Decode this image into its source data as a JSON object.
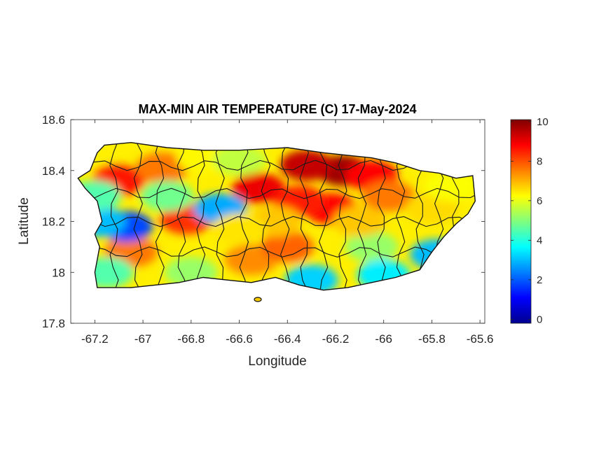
{
  "chart_data": {
    "type": "heatmap",
    "title": "MAX-MIN AIR TEMPERATURE (C) 17-May-2024",
    "xlabel": "Longitude",
    "ylabel": "Latitude",
    "xlim": [
      -67.3,
      -65.58
    ],
    "ylim": [
      17.8,
      18.6
    ],
    "x_ticks": [
      -67.2,
      -67,
      -66.8,
      -66.6,
      -66.4,
      -66.2,
      -66,
      -65.8,
      -65.6
    ],
    "x_tick_labels": [
      "-67.2",
      "-67",
      "-66.8",
      "-66.6",
      "-66.4",
      "-66.2",
      "-66",
      "-65.8",
      "-65.6"
    ],
    "y_ticks": [
      17.8,
      18,
      18.2,
      18.4,
      18.6
    ],
    "y_tick_labels": [
      "17.8",
      "18",
      "18.2",
      "18.4",
      "18.6"
    ],
    "colorbar": {
      "colormap": "jet",
      "clim": [
        -0.2,
        10.1
      ],
      "ticks": [
        0,
        2,
        4,
        6,
        8,
        10
      ],
      "tick_labels": [
        "0",
        "2",
        "4",
        "6",
        "8",
        "10"
      ]
    },
    "island_outline": [
      [
        -67.27,
        18.37
      ],
      [
        -67.22,
        18.4
      ],
      [
        -67.19,
        18.47
      ],
      [
        -67.16,
        18.5
      ],
      [
        -67.05,
        18.51
      ],
      [
        -66.9,
        18.49
      ],
      [
        -66.75,
        18.48
      ],
      [
        -66.6,
        18.48
      ],
      [
        -66.4,
        18.49
      ],
      [
        -66.25,
        18.47
      ],
      [
        -66.15,
        18.46
      ],
      [
        -66.05,
        18.45
      ],
      [
        -65.95,
        18.43
      ],
      [
        -65.85,
        18.4
      ],
      [
        -65.77,
        18.39
      ],
      [
        -65.7,
        18.37
      ],
      [
        -65.63,
        18.38
      ],
      [
        -65.62,
        18.28
      ],
      [
        -65.65,
        18.23
      ],
      [
        -65.7,
        18.19
      ],
      [
        -65.75,
        18.14
      ],
      [
        -65.8,
        18.08
      ],
      [
        -65.85,
        18.01
      ],
      [
        -65.95,
        17.98
      ],
      [
        -66.05,
        17.96
      ],
      [
        -66.15,
        17.94
      ],
      [
        -66.25,
        17.93
      ],
      [
        -66.35,
        17.95
      ],
      [
        -66.45,
        17.98
      ],
      [
        -66.55,
        17.96
      ],
      [
        -66.65,
        17.97
      ],
      [
        -66.75,
        17.98
      ],
      [
        -66.85,
        17.96
      ],
      [
        -66.95,
        17.95
      ],
      [
        -67.05,
        17.94
      ],
      [
        -67.11,
        17.94
      ],
      [
        -67.19,
        17.94
      ],
      [
        -67.2,
        18.0
      ],
      [
        -67.18,
        18.1
      ],
      [
        -67.2,
        18.15
      ],
      [
        -67.17,
        18.2
      ],
      [
        -67.19,
        18.28
      ],
      [
        -67.24,
        18.33
      ]
    ],
    "field_hotspots": [
      {
        "lon": -66.17,
        "lat": 18.4,
        "value": 9.8
      },
      {
        "lon": -66.32,
        "lat": 18.42,
        "value": 9.4
      },
      {
        "lon": -66.05,
        "lat": 18.38,
        "value": 8.8
      },
      {
        "lon": -66.52,
        "lat": 18.33,
        "value": 9.0
      },
      {
        "lon": -66.22,
        "lat": 18.25,
        "value": 8.8
      },
      {
        "lon": -66.35,
        "lat": 18.28,
        "value": 8.5
      },
      {
        "lon": -67.1,
        "lat": 18.36,
        "value": 8.6
      },
      {
        "lon": -66.82,
        "lat": 18.21,
        "value": 8.3
      },
      {
        "lon": -66.92,
        "lat": 18.41,
        "value": 7.6
      },
      {
        "lon": -67.05,
        "lat": 18.08,
        "value": 7.6
      },
      {
        "lon": -66.55,
        "lat": 18.05,
        "value": 7.4
      },
      {
        "lon": -66.4,
        "lat": 18.1,
        "value": 7.8
      },
      {
        "lon": -65.98,
        "lat": 18.3,
        "value": 7.6
      },
      {
        "lon": -65.8,
        "lat": 18.25,
        "value": 6.6
      },
      {
        "lon": -65.72,
        "lat": 18.34,
        "value": 6.2
      },
      {
        "lon": -66.05,
        "lat": 18.1,
        "value": 5.2
      },
      {
        "lon": -66.68,
        "lat": 18.25,
        "value": 2.8
      },
      {
        "lon": -67.07,
        "lat": 18.18,
        "value": 1.8
      },
      {
        "lon": -66.9,
        "lat": 18.3,
        "value": 4.8
      },
      {
        "lon": -67.18,
        "lat": 18.2,
        "value": 3.0
      },
      {
        "lon": -66.3,
        "lat": 17.97,
        "value": 3.2
      },
      {
        "lon": -66.0,
        "lat": 17.99,
        "value": 3.5
      },
      {
        "lon": -65.78,
        "lat": 18.07,
        "value": 3.0
      },
      {
        "lon": -66.8,
        "lat": 18.0,
        "value": 5.2
      },
      {
        "lon": -67.15,
        "lat": 18.0,
        "value": 4.5
      },
      {
        "lon": -67.2,
        "lat": 18.3,
        "value": 4.5
      },
      {
        "lon": -66.75,
        "lat": 18.45,
        "value": 6.3
      },
      {
        "lon": -66.6,
        "lat": 18.44,
        "value": 5.6
      },
      {
        "lon": -66.45,
        "lat": 18.2,
        "value": 6.8
      },
      {
        "lon": -66.6,
        "lat": 18.17,
        "value": 6.5
      },
      {
        "lon": -66.1,
        "lat": 18.2,
        "value": 6.8
      }
    ],
    "base_value": 6.4
  }
}
